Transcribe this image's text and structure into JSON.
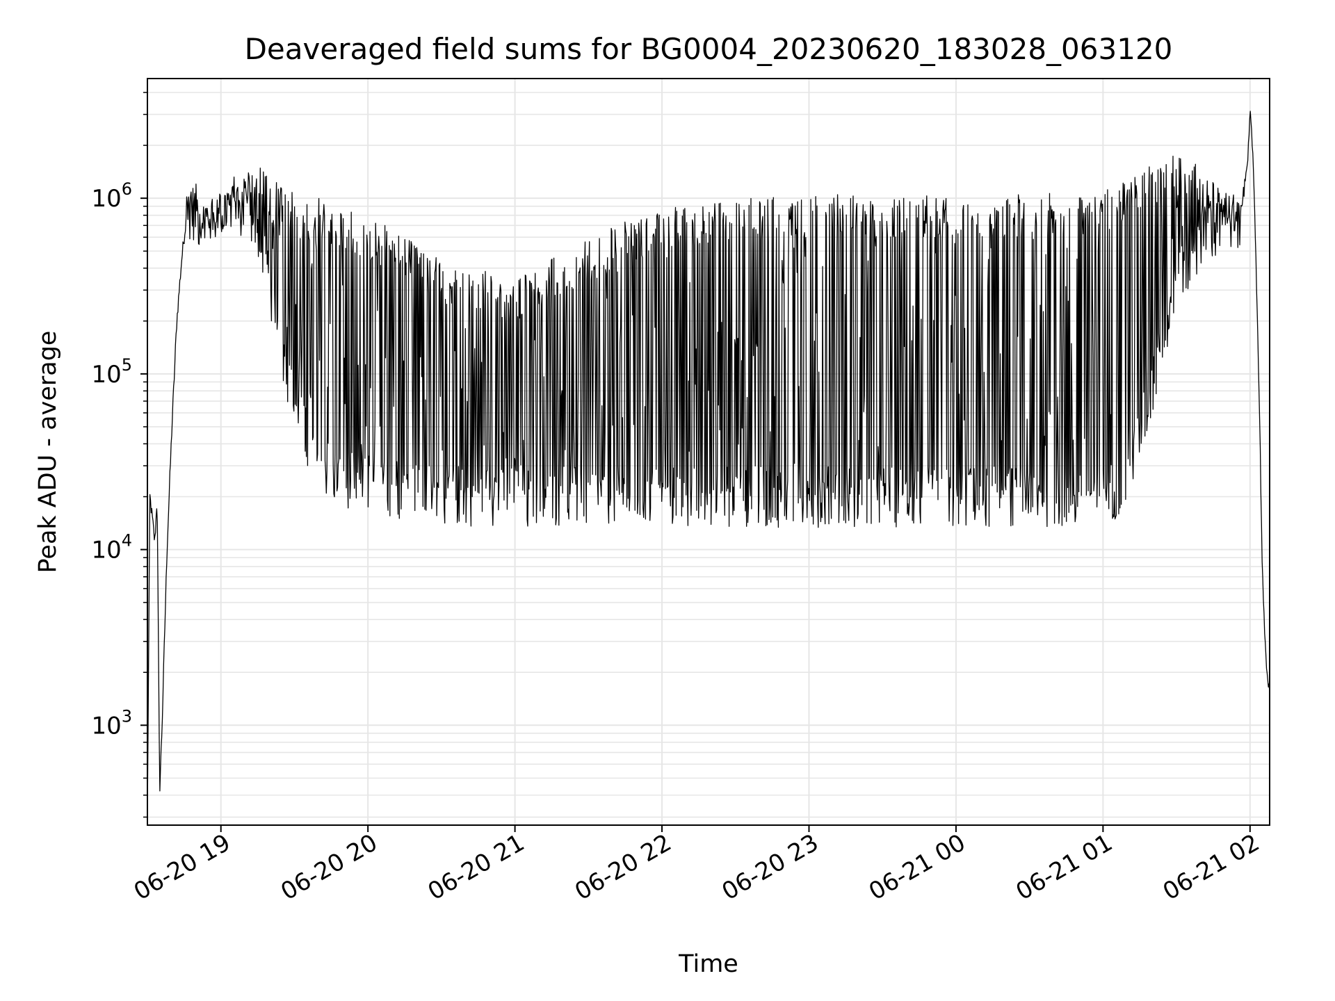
{
  "chart_data": {
    "type": "line",
    "title": "Deaveraged field sums for BG0004_20230620_183028_063120",
    "xlabel": "Time",
    "ylabel": "Peak ADU - average",
    "yscale": "log",
    "grid": true,
    "grid_minor": true,
    "line_color": "#000000",
    "grid_color": "#e6e6e6",
    "xlim": [
      "2023-06-20 18:30",
      "2023-06-21 02:08"
    ],
    "ylim": [
      270,
      4800000
    ],
    "x_ticks": [
      {
        "label": "06-20 19",
        "t": "2023-06-20 19:00"
      },
      {
        "label": "06-20 20",
        "t": "2023-06-20 20:00"
      },
      {
        "label": "06-20 21",
        "t": "2023-06-20 21:00"
      },
      {
        "label": "06-20 22",
        "t": "2023-06-20 22:00"
      },
      {
        "label": "06-20 23",
        "t": "2023-06-20 23:00"
      },
      {
        "label": "06-21 00",
        "t": "2023-06-21 00:00"
      },
      {
        "label": "06-21 01",
        "t": "2023-06-21 01:00"
      },
      {
        "label": "06-21 02",
        "t": "2023-06-21 02:00"
      }
    ],
    "y_ticks": [
      {
        "base": "10",
        "exp": "3",
        "value": 1000
      },
      {
        "base": "10",
        "exp": "4",
        "value": 10000
      },
      {
        "base": "10",
        "exp": "5",
        "value": 100000
      },
      {
        "base": "10",
        "exp": "6",
        "value": 1000000
      }
    ],
    "series": [
      {
        "x": [
          "2023-06-20 18:30",
          "2023-06-20 18:31",
          "2023-06-20 18:32",
          "2023-06-20 18:33",
          "2023-06-20 18:34",
          "2023-06-20 18:35",
          "2023-06-20 18:36",
          "2023-06-20 18:38",
          "2023-06-20 18:40",
          "2023-06-20 18:42",
          "2023-06-20 18:44",
          "2023-06-20 18:46",
          "2023-06-20 18:48",
          "2023-06-20 18:50",
          "2023-06-20 18:53",
          "2023-06-20 18:57",
          "2023-06-20 19:00",
          "2023-06-20 19:05",
          "2023-06-20 19:10",
          "2023-06-20 19:15",
          "2023-06-20 19:20",
          "2023-06-20 19:25",
          "2023-06-20 19:30",
          "2023-06-20 19:35",
          "2023-06-20 19:40",
          "2023-06-20 19:45",
          "2023-06-20 19:50",
          "2023-06-20 20:00",
          "2023-06-20 20:15",
          "2023-06-20 20:30",
          "2023-06-20 20:45",
          "2023-06-20 21:00",
          "2023-06-20 21:30",
          "2023-06-20 22:00",
          "2023-06-20 22:30",
          "2023-06-20 23:00",
          "2023-06-20 23:30",
          "2023-06-21 00:00",
          "2023-06-21 00:30",
          "2023-06-21 00:45",
          "2023-06-21 01:00",
          "2023-06-21 01:10",
          "2023-06-21 01:20",
          "2023-06-21 01:30",
          "2023-06-21 01:40",
          "2023-06-21 01:50",
          "2023-06-21 01:56",
          "2023-06-21 01:59",
          "2023-06-21 02:00",
          "2023-06-21 02:01",
          "2023-06-21 02:02",
          "2023-06-21 02:03",
          "2023-06-21 02:04",
          "2023-06-21 02:05",
          "2023-06-21 02:06",
          "2023-06-21 02:07",
          "2023-06-21 02:08"
        ],
        "base": [
          300,
          20000,
          15000,
          11000,
          20000,
          420,
          1000,
          10000,
          50000,
          200000,
          450000,
          800000,
          900000,
          800000,
          700000,
          650000,
          800000,
          900000,
          900000,
          600000,
          300000,
          140000,
          70000,
          40000,
          32000,
          28000,
          26000,
          24000,
          22000,
          21000,
          20000,
          20000,
          20000,
          20000,
          20000,
          20000,
          20000,
          20000,
          20000,
          20000,
          20000,
          25000,
          80000,
          300000,
          600000,
          700000,
          800000,
          1500000,
          3000000,
          2000000,
          800000,
          200000,
          50000,
          8000,
          3000,
          2000,
          1600
        ],
        "peak": [
          300,
          25000,
          20000,
          15000,
          25000,
          420,
          1000,
          12000,
          55000,
          250000,
          500000,
          1200000,
          1200000,
          1100000,
          1000000,
          1000000,
          1100000,
          1200000,
          1500000,
          1600000,
          1300000,
          1200000,
          1100000,
          1000000,
          1000000,
          900000,
          900000,
          800000,
          600000,
          450000,
          400000,
          350000,
          600000,
          900000,
          1000000,
          1050000,
          1050000,
          1050000,
          1050000,
          1100000,
          1100000,
          1300000,
          1600000,
          1800000,
          1500000,
          1100000,
          1000000,
          1500000,
          3000000,
          2000000,
          800000,
          200000,
          50000,
          8000,
          3000,
          2000,
          1600
        ],
        "spiky": [
          0,
          0,
          0,
          0,
          0,
          0,
          0,
          0,
          0,
          0,
          0,
          1,
          1,
          1,
          1,
          1,
          1,
          1,
          1,
          1,
          1,
          1,
          1,
          1,
          1,
          1,
          1,
          1,
          1,
          1,
          1,
          1,
          1,
          1,
          1,
          1,
          1,
          1,
          1,
          1,
          1,
          1,
          1,
          1,
          1,
          1,
          1,
          0,
          0,
          0,
          0,
          0,
          0,
          0,
          0,
          0,
          0
        ]
      }
    ]
  }
}
